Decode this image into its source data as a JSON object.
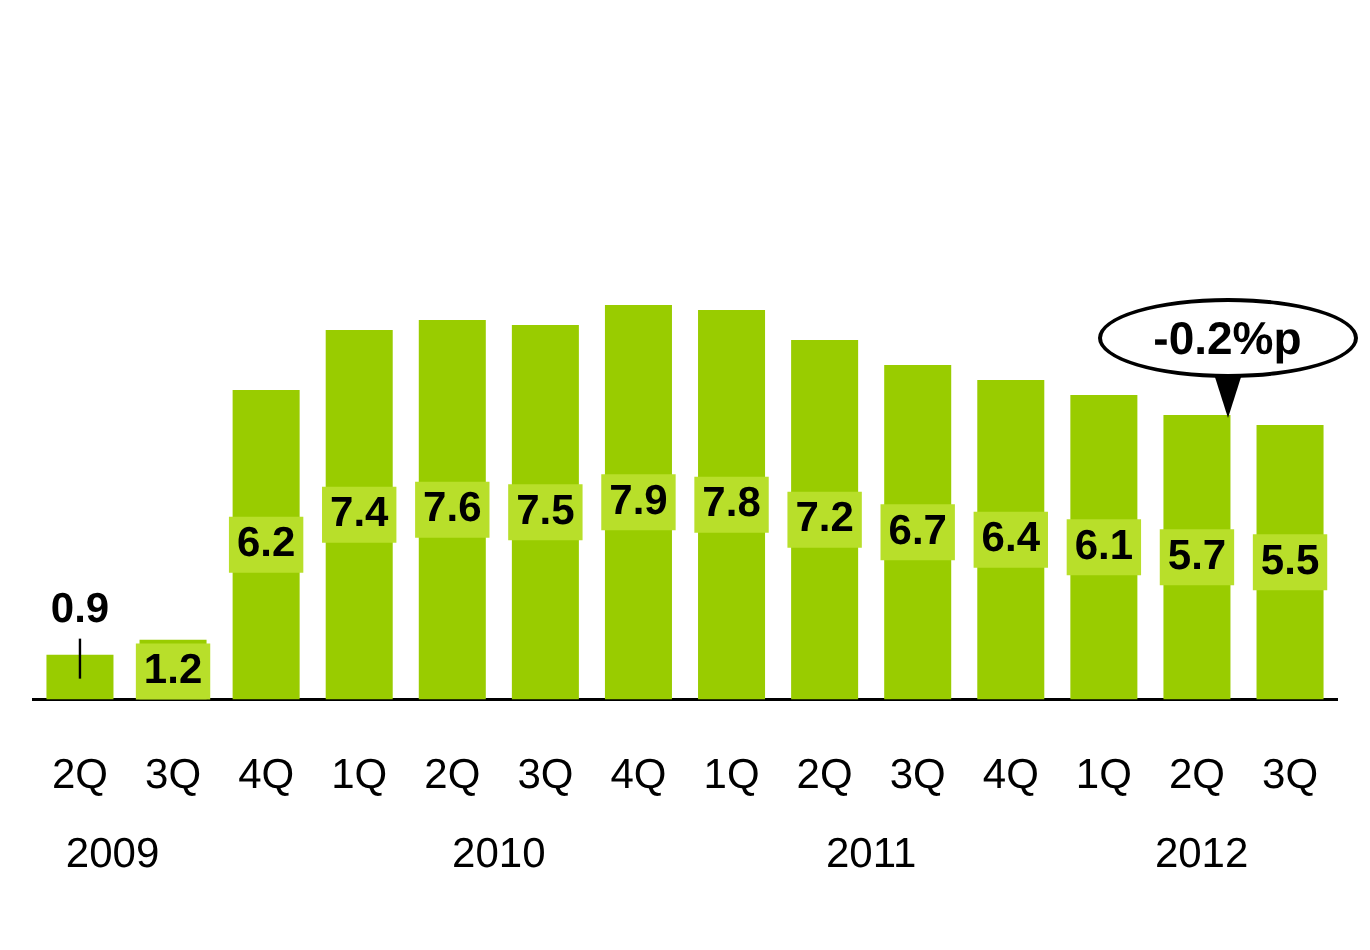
{
  "chart_data": {
    "type": "bar",
    "categories": [
      "2Q",
      "3Q",
      "4Q",
      "1Q",
      "2Q",
      "3Q",
      "4Q",
      "1Q",
      "2Q",
      "3Q",
      "4Q",
      "1Q",
      "2Q",
      "3Q"
    ],
    "values": [
      0.9,
      1.2,
      6.2,
      7.4,
      7.6,
      7.5,
      7.9,
      7.8,
      7.2,
      6.7,
      6.4,
      6.1,
      5.7,
      5.5
    ],
    "color": "#99cc00",
    "data_labels": true,
    "tick_labels": "x",
    "grid": false,
    "legend": false,
    "annotations": [
      "2009",
      "2010",
      "2011",
      "2012",
      "-0.2%p"
    ]
  }
}
